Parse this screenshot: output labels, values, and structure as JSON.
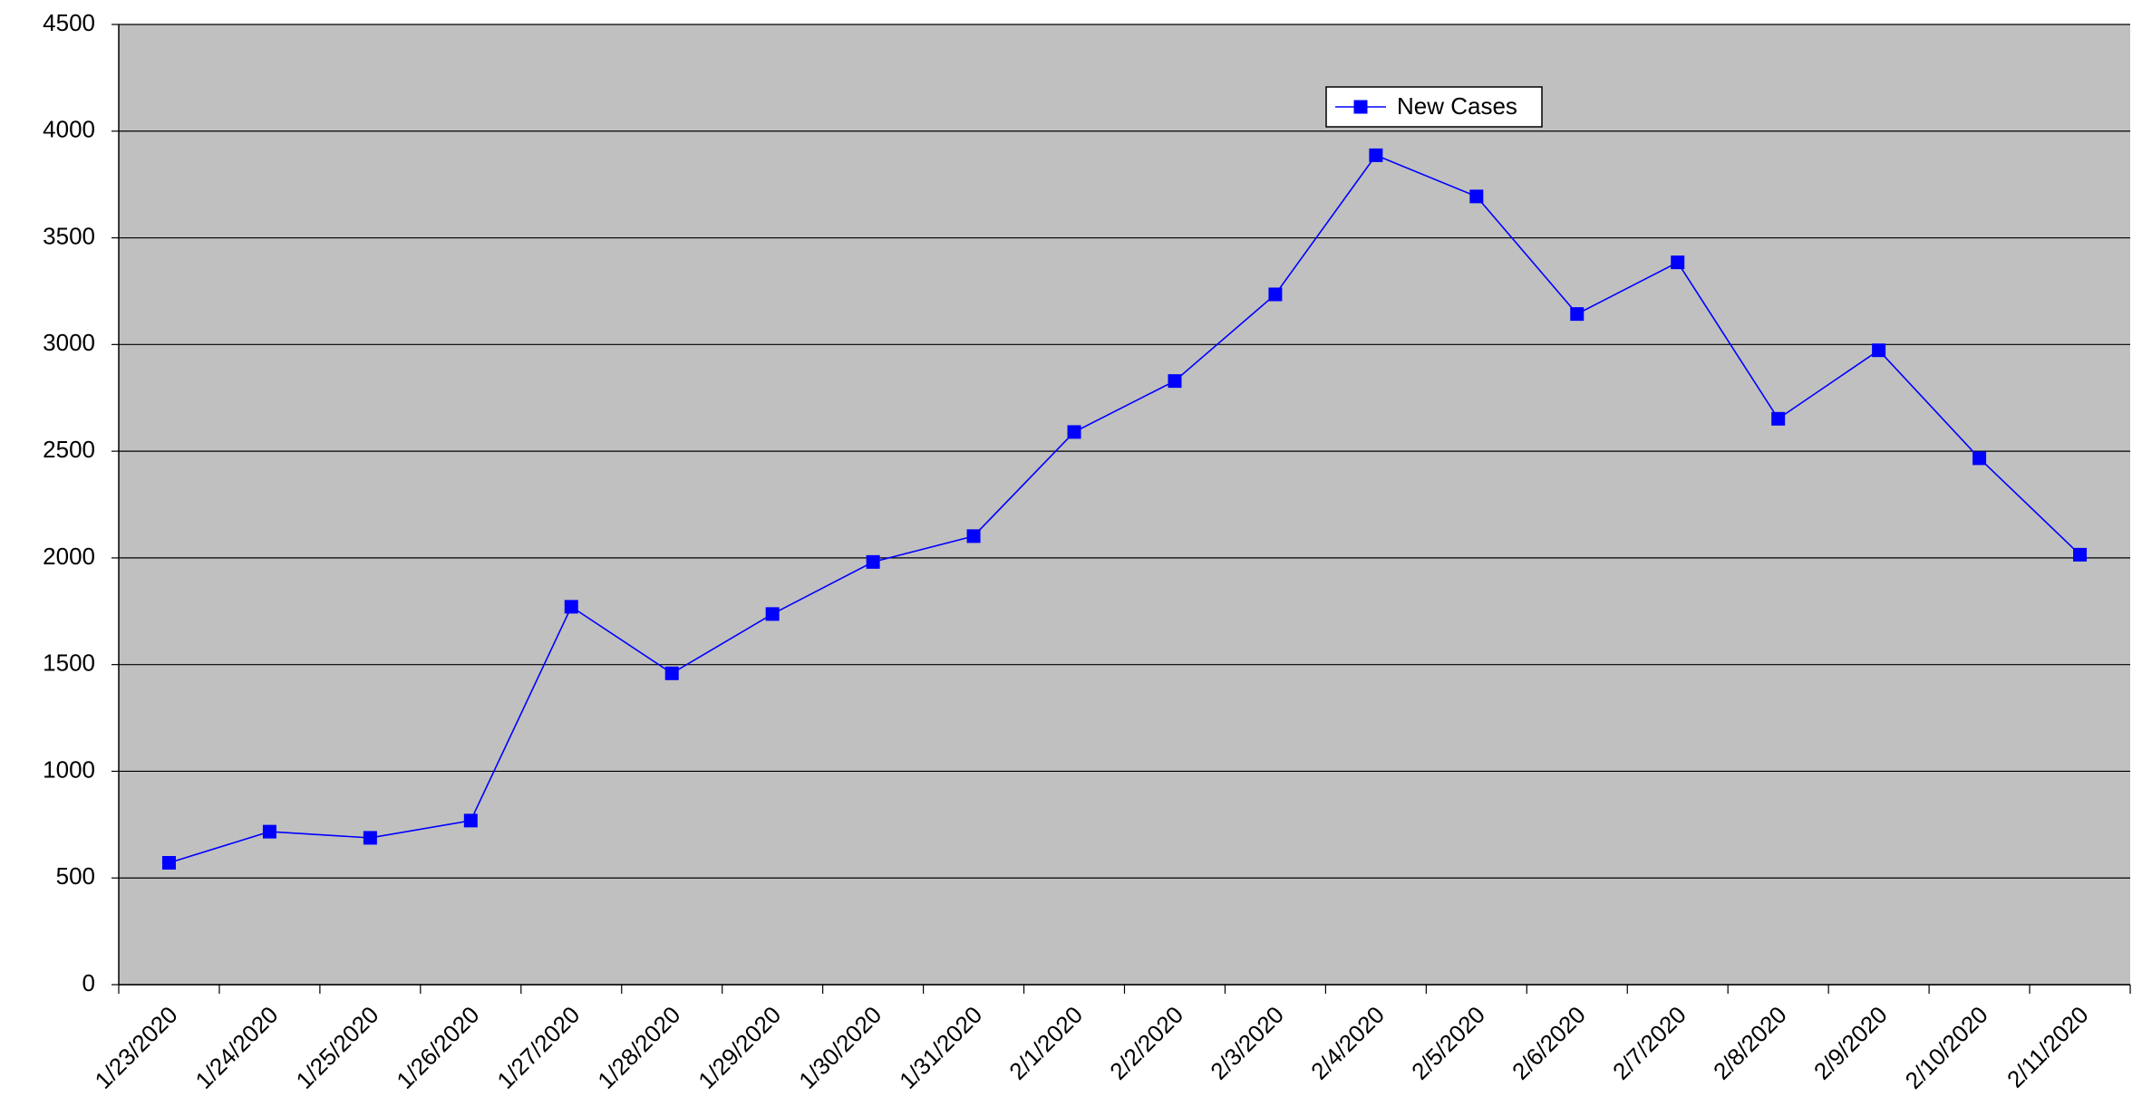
{
  "chart_data": {
    "type": "line",
    "categories": [
      "1/23/2020",
      "1/24/2020",
      "1/25/2020",
      "1/26/2020",
      "1/27/2020",
      "1/28/2020",
      "1/29/2020",
      "1/30/2020",
      "1/31/2020",
      "2/1/2020",
      "2/2/2020",
      "2/3/2020",
      "2/4/2020",
      "2/5/2020",
      "2/6/2020",
      "2/7/2020",
      "2/8/2020",
      "2/9/2020",
      "2/10/2020",
      "2/11/2020"
    ],
    "series": [
      {
        "name": "New Cases",
        "color": "#0000ff",
        "values": [
          571,
          717,
          688,
          769,
          1771,
          1459,
          1737,
          1981,
          2102,
          2590,
          2829,
          3235,
          3887,
          3694,
          3143,
          3385,
          2652,
          2973,
          2467,
          2015
        ]
      }
    ],
    "ylim": [
      0,
      4500
    ],
    "yticks": [
      0,
      500,
      1000,
      1500,
      2000,
      2500,
      3000,
      3500,
      4000,
      4500
    ],
    "grid": true,
    "plot_background": "#c0c0c0"
  }
}
